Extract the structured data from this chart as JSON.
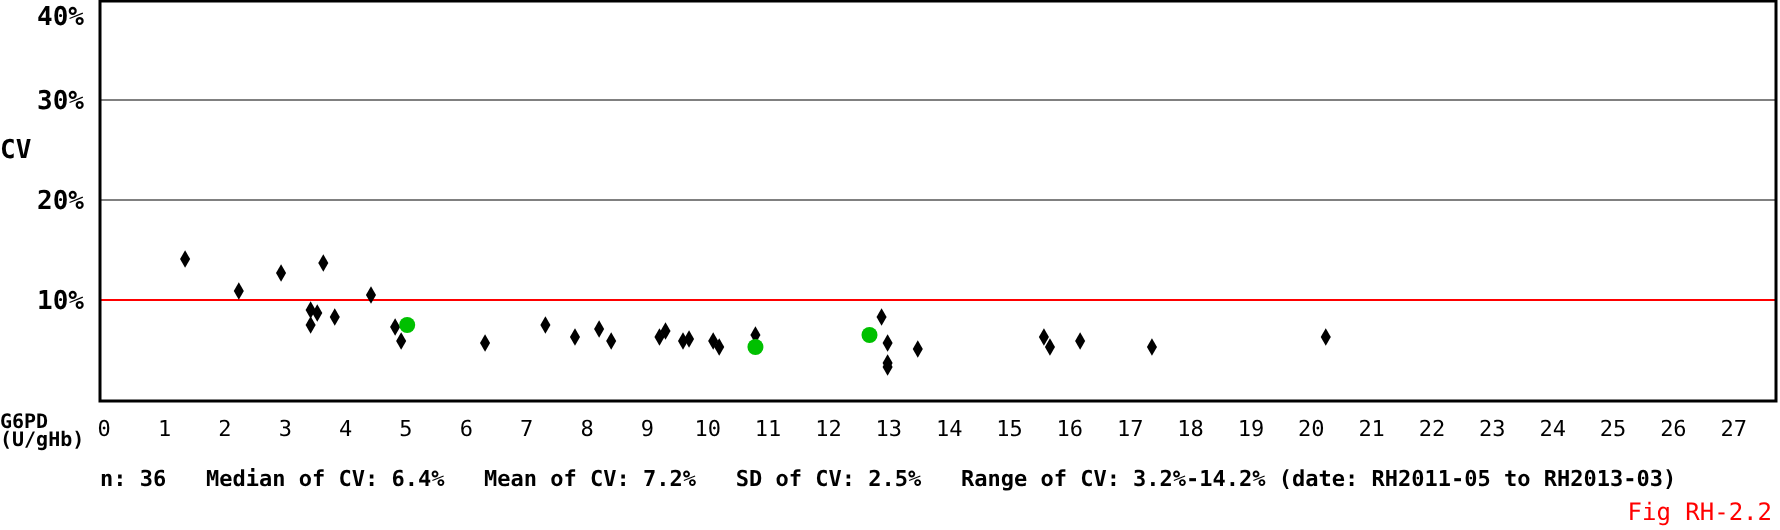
{
  "chart_data": {
    "type": "scatter",
    "ylabel": "CV",
    "xlabel": "G6PD\n(U/gHb)",
    "xlim": [
      -0.07,
      27.7
    ],
    "xticks": [
      0,
      1,
      2,
      3,
      4,
      5,
      6,
      7,
      8,
      9,
      10,
      11,
      12,
      13,
      14,
      15,
      16,
      17,
      18,
      19,
      20,
      21,
      22,
      23,
      24,
      25,
      26,
      27
    ],
    "ylim": [
      0,
      40
    ],
    "yticks": [
      {
        "value": 10,
        "label": "10%"
      },
      {
        "value": 20,
        "label": "20%"
      },
      {
        "value": 30,
        "label": "30%"
      },
      {
        "value": 40,
        "label": "40%"
      }
    ],
    "grid": "y",
    "ref_lines": [
      {
        "axis": "y",
        "value": 10,
        "color": "#ff0000"
      }
    ],
    "series": [
      {
        "color": "#000000",
        "marker": "diamond",
        "x": [
          1.34,
          2.23,
          2.93,
          3.63,
          3.42,
          3.53,
          3.42,
          3.82,
          4.42,
          4.82,
          4.92,
          6.31,
          7.31,
          7.8,
          8.2,
          8.4,
          9.2,
          9.3,
          9.59,
          9.69,
          10.09,
          10.19,
          10.79,
          12.88,
          12.98,
          12.98,
          12.98,
          13.48,
          15.57,
          15.67,
          16.17,
          17.36,
          20.24
        ],
        "values": [
          14.1,
          10.9,
          12.7,
          13.7,
          9.0,
          8.7,
          7.5,
          8.3,
          10.5,
          7.3,
          5.9,
          5.7,
          7.5,
          6.3,
          7.1,
          5.9,
          6.3,
          6.9,
          5.9,
          6.1,
          5.9,
          5.3,
          6.5,
          8.3,
          5.7,
          3.7,
          3.3,
          5.1,
          6.3,
          5.3,
          5.9,
          5.3,
          6.3
        ]
      },
      {
        "color": "#00c000",
        "marker": "circle",
        "x": [
          5.02,
          10.79,
          12.68
        ],
        "values": [
          7.5,
          5.3,
          6.5
        ]
      }
    ],
    "annotations": [
      "n: 36   Median of CV: 6.4%   Mean of CV: 7.2%   SD of CV: 2.5%   Range of CV: 3.2%-14.2% (date: RH2011-05 to RH2013-03)",
      "Fig RH-2.2"
    ]
  }
}
